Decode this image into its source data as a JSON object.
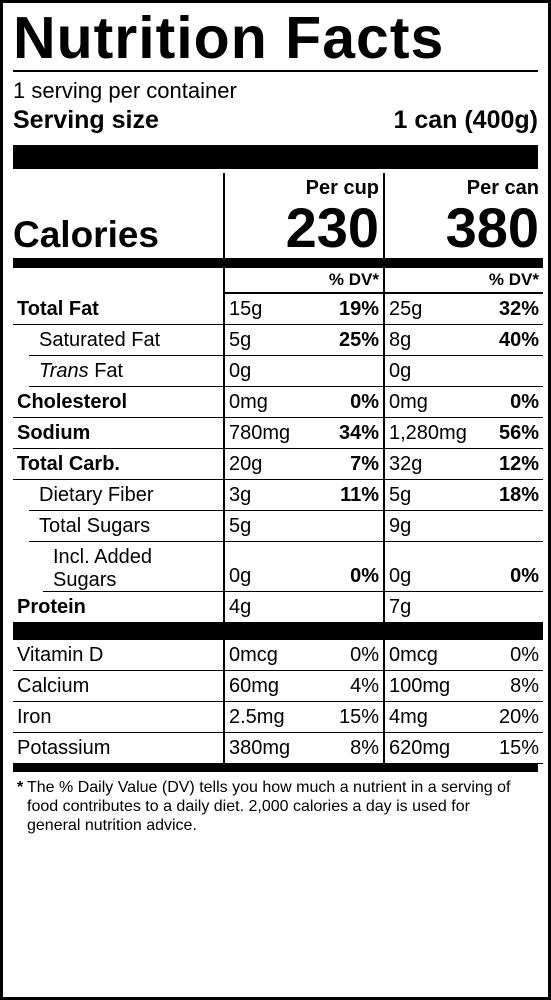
{
  "title": "Nutrition Facts",
  "servings_per_container": "1 serving per container",
  "serving_size_label": "Serving size",
  "serving_size_value": "1 can (400g)",
  "col_headers": {
    "per_cup": "Per cup",
    "per_can": "Per can"
  },
  "calories": {
    "label": "Calories",
    "per_cup": "230",
    "per_can": "380"
  },
  "dv_header": "% DV*",
  "rows": [
    {
      "name": "Total Fat",
      "bold": true,
      "indent": 0,
      "cup_amt": "15g",
      "cup_dv": "19%",
      "can_amt": "25g",
      "can_dv": "32%"
    },
    {
      "name": "Saturated Fat",
      "bold": false,
      "indent": 1,
      "cup_amt": "5g",
      "cup_dv": "25%",
      "can_amt": "8g",
      "can_dv": "40%",
      "half_rule": true
    },
    {
      "name_html": "<span class='ital'>Trans</span> Fat",
      "bold": false,
      "indent": 1,
      "cup_amt": "0g",
      "cup_dv": "",
      "can_amt": "0g",
      "can_dv": "",
      "half_rule": true
    },
    {
      "name": "Cholesterol",
      "bold": true,
      "indent": 0,
      "cup_amt": "0mg",
      "cup_dv": "0%",
      "can_amt": "0mg",
      "can_dv": "0%"
    },
    {
      "name": "Sodium",
      "bold": true,
      "indent": 0,
      "cup_amt": "780mg",
      "cup_dv": "34%",
      "can_amt": "1,280mg",
      "can_dv": "56%"
    },
    {
      "name": "Total Carb.",
      "bold": true,
      "indent": 0,
      "cup_amt": "20g",
      "cup_dv": "7%",
      "can_amt": "32g",
      "can_dv": "12%"
    },
    {
      "name": "Dietary Fiber",
      "bold": false,
      "indent": 1,
      "cup_amt": "3g",
      "cup_dv": "11%",
      "can_amt": "5g",
      "can_dv": "18%",
      "half_rule": true
    },
    {
      "name": "Total Sugars",
      "bold": false,
      "indent": 1,
      "cup_amt": "5g",
      "cup_dv": "",
      "can_amt": "9g",
      "can_dv": "",
      "half_rule": true
    },
    {
      "name": "Incl. Added Sugars",
      "bold": false,
      "indent": 2,
      "cup_amt": "0g",
      "cup_dv": "0%",
      "can_amt": "0g",
      "can_dv": "0%",
      "half_rule": true
    },
    {
      "name": "Protein",
      "bold": true,
      "indent": 0,
      "cup_amt": "4g",
      "cup_dv": "",
      "can_amt": "7g",
      "can_dv": "",
      "noline": true
    }
  ],
  "micros": [
    {
      "name": "Vitamin D",
      "cup_amt": "0mcg",
      "cup_dv": "0%",
      "can_amt": "0mcg",
      "can_dv": "0%"
    },
    {
      "name": "Calcium",
      "cup_amt": "60mg",
      "cup_dv": "4%",
      "can_amt": "100mg",
      "can_dv": "8%"
    },
    {
      "name": "Iron",
      "cup_amt": "2.5mg",
      "cup_dv": "15%",
      "can_amt": "4mg",
      "can_dv": "20%"
    },
    {
      "name": "Potassium",
      "cup_amt": "380mg",
      "cup_dv": "8%",
      "can_amt": "620mg",
      "can_dv": "15%"
    }
  ],
  "footnote": "The % Daily Value (DV) tells you how much a nutrient in a serving of food contributes to a daily diet. 2,000 calories a day is used for general nutrition advice.",
  "colors": {
    "fg": "#000000",
    "bg": "#ffffff"
  }
}
